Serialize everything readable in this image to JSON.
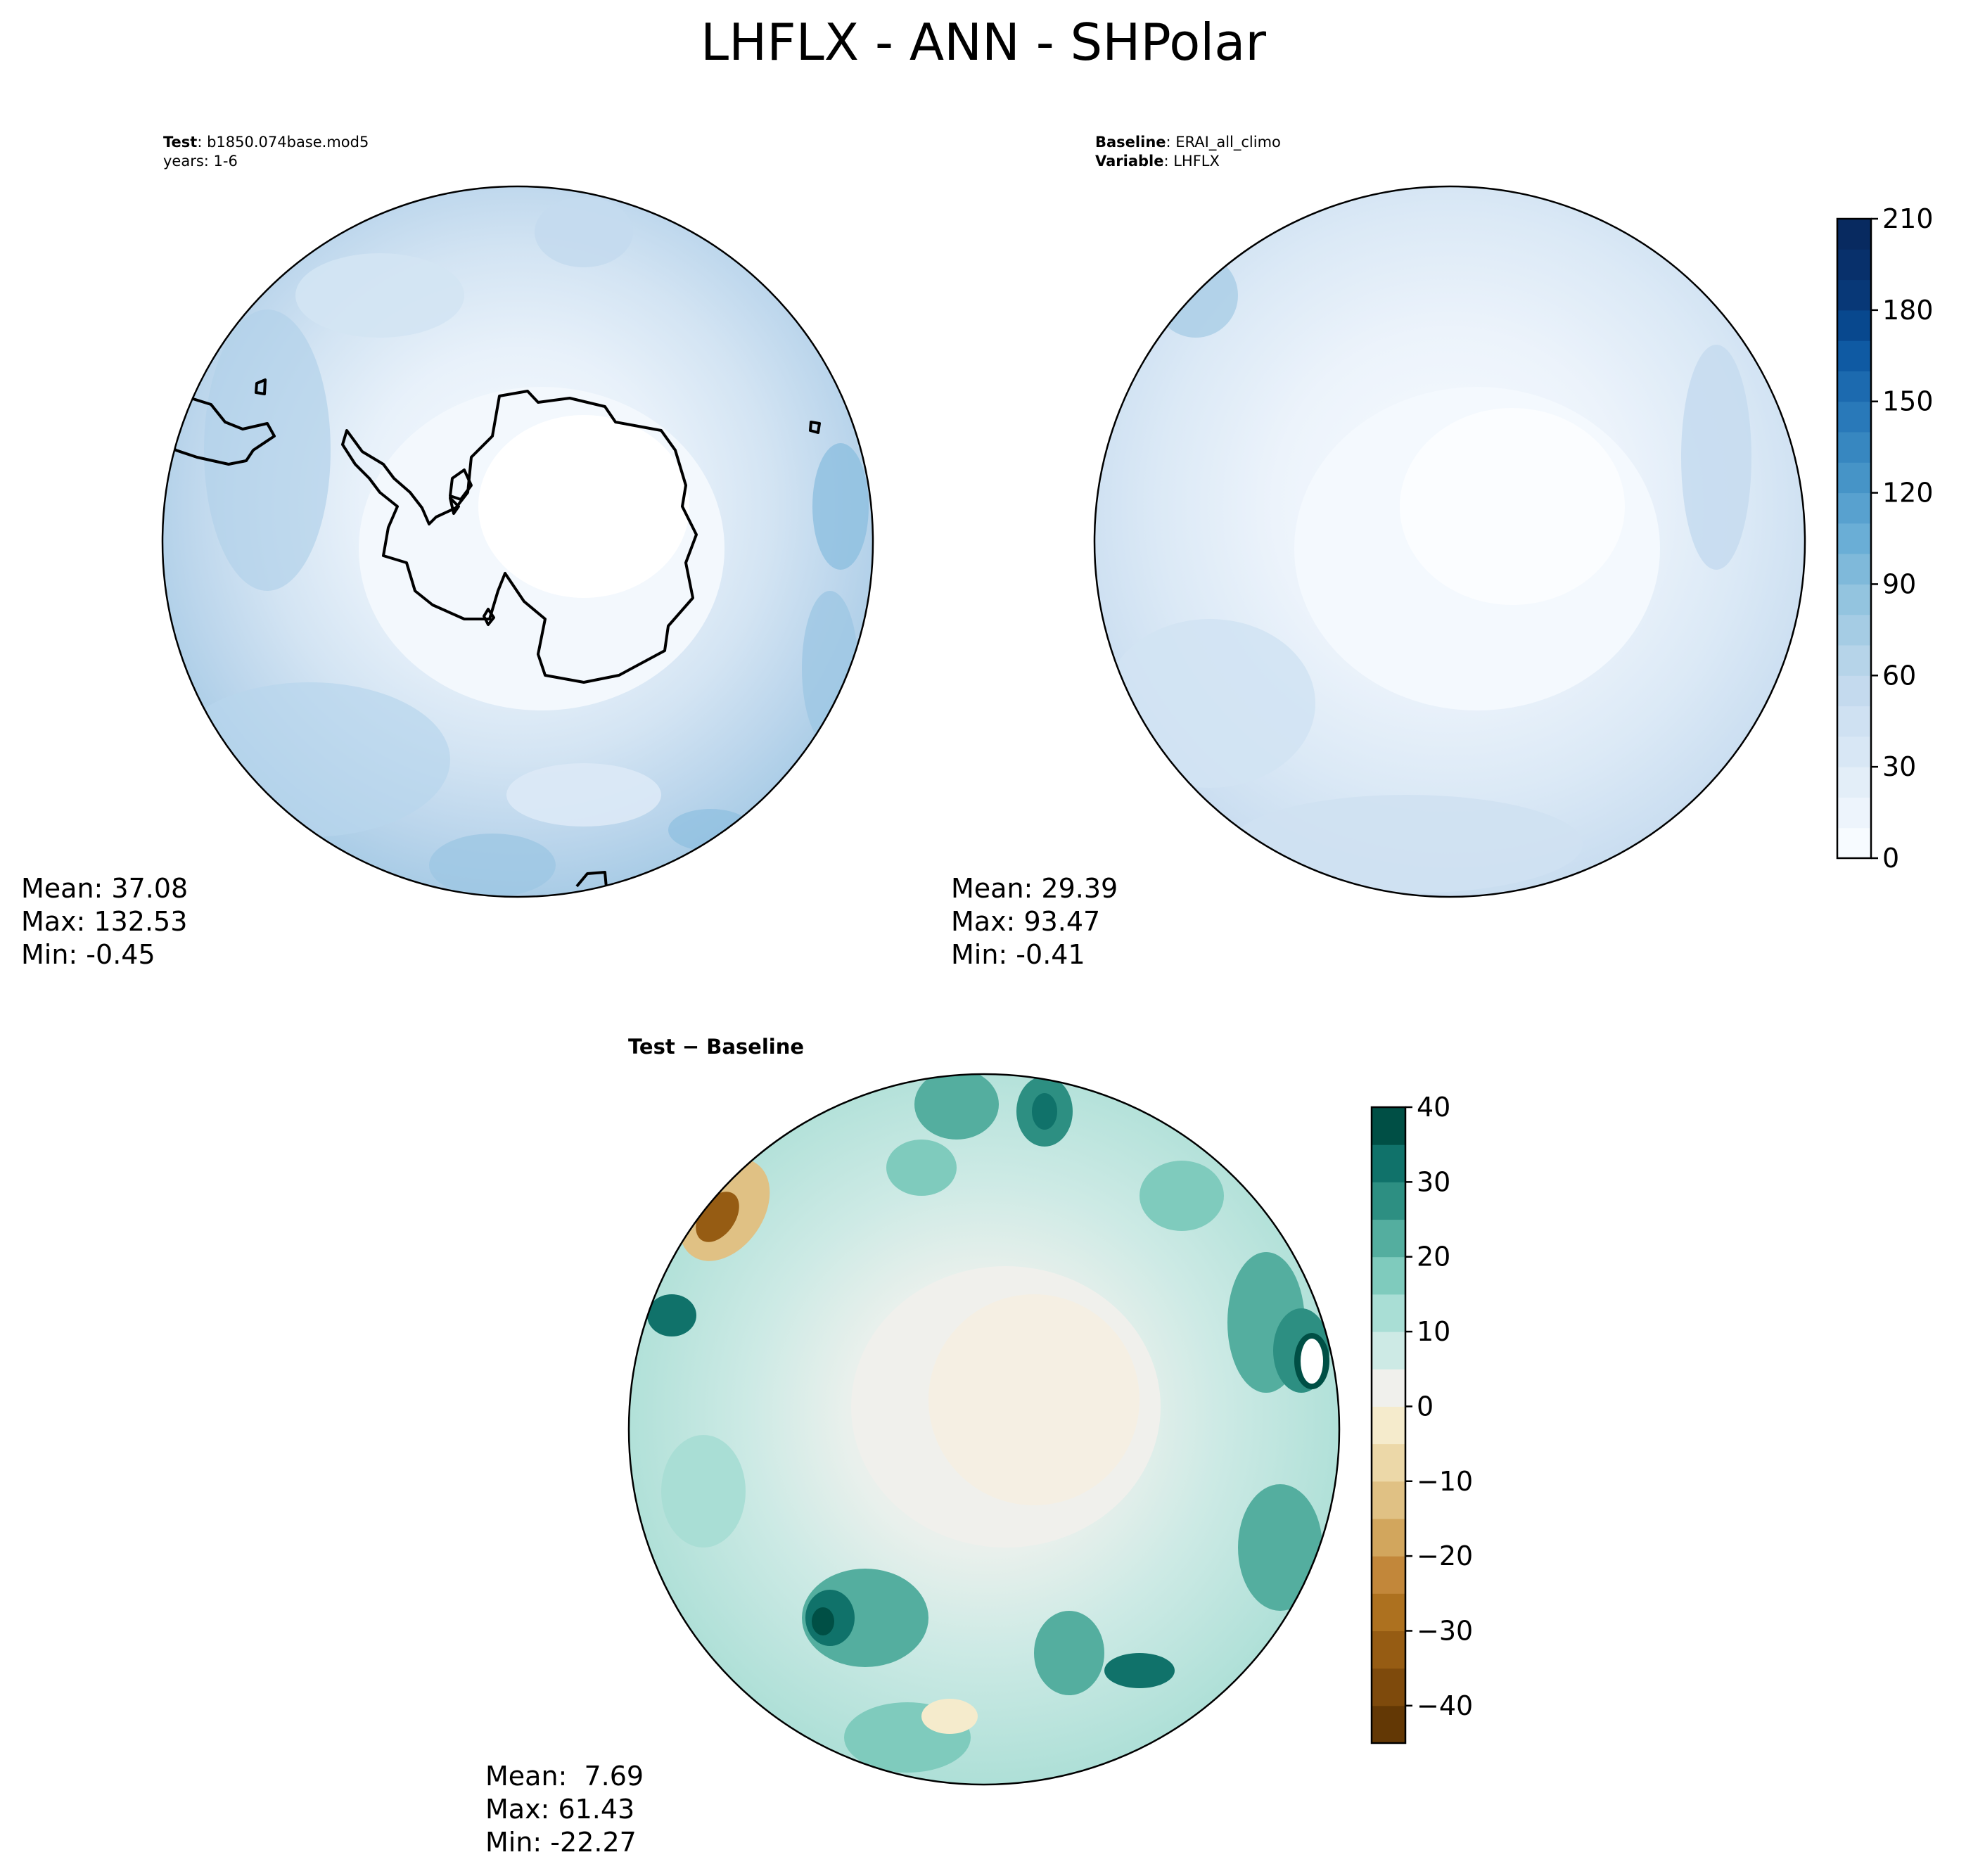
{
  "title": "LHFLX - ANN - SHPolar",
  "panels": [
    {
      "id": "test",
      "header_lines": [
        {
          "bold": "Test",
          "text": ": b1850.074base.mod5"
        },
        {
          "bold": "",
          "text": "years: 1-6"
        }
      ],
      "stats": {
        "mean": "Mean: 37.08",
        "max": "Max: 132.53",
        "min": "Min: -0.45"
      },
      "colormap": "Blues",
      "field_level": "light-to-mid blue, higher over open ocean",
      "field_range": [
        -0.45,
        132.53
      ]
    },
    {
      "id": "baseline",
      "header_lines": [
        {
          "bold": "Baseline",
          "text": ": ERAI_all_climo"
        },
        {
          "bold": "Variable",
          "text": ": LHFLX"
        }
      ],
      "stats": {
        "mean": "Mean: 29.39",
        "max": "Max: 93.47",
        "min": "Min: -0.41"
      },
      "colormap": "Blues",
      "field_range": [
        -0.41,
        93.47
      ]
    },
    {
      "id": "diff",
      "header_lines": [
        {
          "bold": "Test − Baseline",
          "text": ""
        }
      ],
      "stats": {
        "mean": "Mean:  7.69",
        "max": "Max: 61.43",
        "min": "Min: -22.27"
      },
      "colormap": "BrBG",
      "field_range": [
        -22.27,
        61.43
      ]
    }
  ],
  "colorbars": [
    {
      "id": "abs",
      "vmin": 0,
      "vmax": 210,
      "ticks": [
        "0",
        "30",
        "60",
        "90",
        "120",
        "150",
        "180",
        "210"
      ],
      "colors": [
        "#f7fbff",
        "#edf4fc",
        "#e3eef8",
        "#d8e7f5",
        "#cfe1f2",
        "#c4daee",
        "#b6d4e9",
        "#a5cce4",
        "#93c4df",
        "#7fb9da",
        "#6aaed6",
        "#58a1cf",
        "#4694c7",
        "#3787c0",
        "#2979b9",
        "#1c6aaf",
        "#0f5aa3",
        "#08488e",
        "#083877",
        "#08306b",
        "#082a60"
      ]
    },
    {
      "id": "diff",
      "vmin": -45,
      "vmax": 40,
      "ticks": [
        "40",
        "30",
        "20",
        "10",
        "0",
        "−10",
        "−20",
        "−30",
        "−40"
      ],
      "tick_values": [
        40,
        30,
        20,
        10,
        0,
        -10,
        -20,
        -30,
        -40
      ],
      "levels": [
        -45,
        -40,
        -35,
        -30,
        -25,
        -20,
        -15,
        -10,
        -5,
        0,
        5,
        10,
        15,
        20,
        25,
        30,
        35,
        40
      ],
      "colors": [
        "#633805",
        "#7e4a0c",
        "#965c13",
        "#ad711f",
        "#c2873a",
        "#d2a65d",
        "#e0c184",
        "#ecd8a8",
        "#f5ebcc",
        "#f0f0ec",
        "#cdeae5",
        "#a9ded5",
        "#7fcbbd",
        "#54ae9f",
        "#2d8f82",
        "#10726a",
        "#004f45"
      ]
    }
  ]
}
